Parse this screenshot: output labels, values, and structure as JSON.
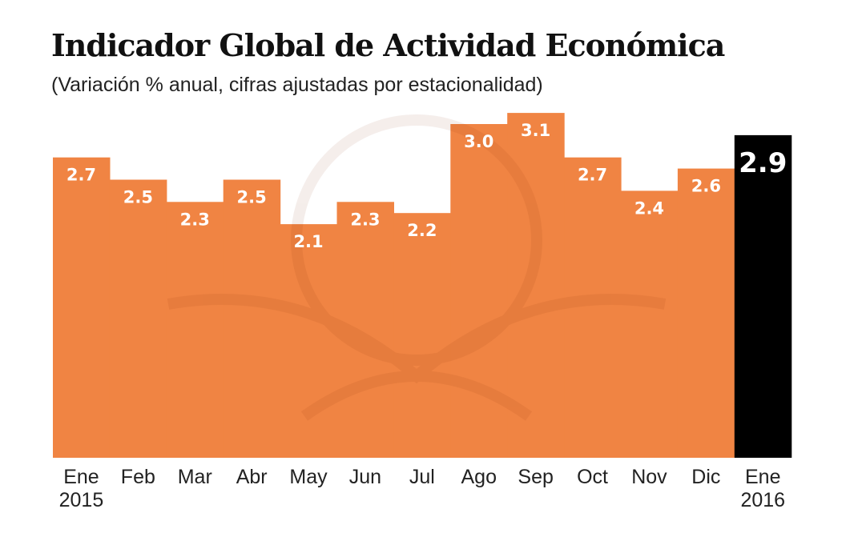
{
  "chart_data": {
    "type": "bar",
    "title": "Indicador Global de Actividad Económica",
    "subtitle": "(Variación % anual, cifras ajustadas por estacionalidad)",
    "categories": [
      [
        "Ene",
        "2015"
      ],
      [
        "Feb"
      ],
      [
        "Mar"
      ],
      [
        "Abr"
      ],
      [
        "May"
      ],
      [
        "Jun"
      ],
      [
        "Jul"
      ],
      [
        "Ago"
      ],
      [
        "Sep"
      ],
      [
        "Oct"
      ],
      [
        "Nov"
      ],
      [
        "Dic"
      ],
      [
        "Ene",
        "2016"
      ]
    ],
    "values": [
      2.7,
      2.5,
      2.3,
      2.5,
      2.1,
      2.3,
      2.2,
      3.0,
      3.1,
      2.7,
      2.4,
      2.6,
      2.9
    ],
    "value_labels": [
      "2.7",
      "2.5",
      "2.3",
      "2.5",
      "2.1",
      "2.3",
      "2.2",
      "3.0",
      "3.1",
      "2.7",
      "2.4",
      "2.6",
      "2.9"
    ],
    "highlight_index": 12,
    "ylim": [
      0,
      3.1
    ],
    "xlabel": "",
    "ylabel": "",
    "grid": false,
    "colors": {
      "bar": "#f08443",
      "highlight": "#000000"
    }
  }
}
